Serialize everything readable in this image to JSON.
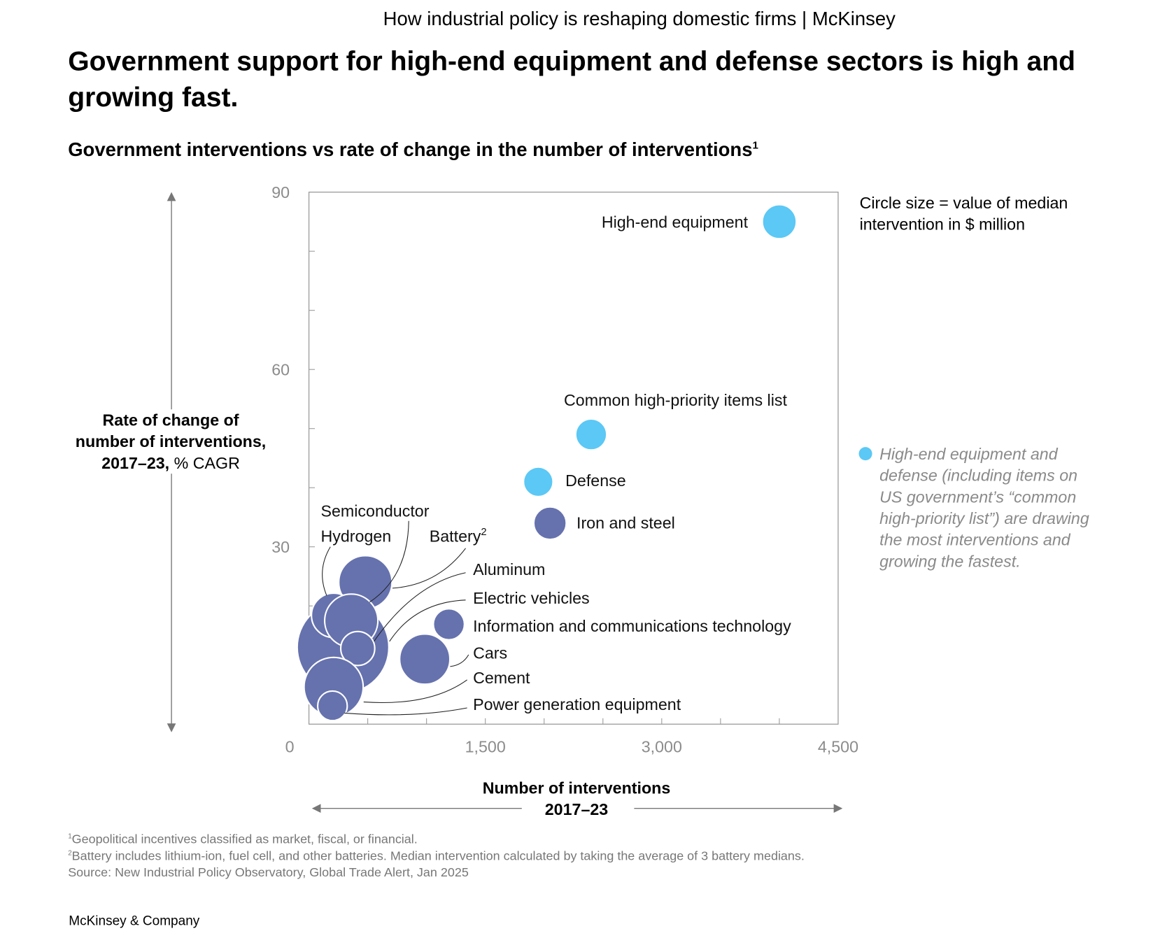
{
  "header": "How industrial policy is reshaping domestic firms | McKinsey",
  "title": "Government support for high-end equipment and defense sectors is high and growing fast.",
  "subtitle": "Government interventions vs rate of change in the number of interventions",
  "subtitle_sup": "1",
  "y_label": {
    "bold": "Rate of change of number of interventions, 2017–23,",
    "rest": " % CAGR"
  },
  "x_label": {
    "line1": "Number of interventions",
    "line2": "2017–23"
  },
  "legend_size": [
    "Circle size = value of median",
    "intervention in $ million"
  ],
  "highlight_note": "High-end equipment and defense (including items on US government’s “common high-priority list”) are drawing the most interventions and growing the fastest.",
  "colors": {
    "highlight": "#5bc8f5",
    "other": "#6672ae"
  },
  "footnotes": [
    {
      "sup": "1",
      "text": "Geopolitical incentives classified as market, fiscal, or financial."
    },
    {
      "sup": "2",
      "text": "Battery includes lithium-ion, fuel cell, and other batteries. Median intervention calculated by taking the average of 3 battery medians."
    },
    {
      "sup": "",
      "text": " Source: New Industrial Policy Observatory, Global Trade Alert, Jan 2025"
    }
  ],
  "brand": "McKinsey & Company",
  "chart_data": {
    "type": "scatter",
    "title": "Government interventions vs rate of change in the number of interventions",
    "xlabel": "Number of interventions 2017–23",
    "ylabel": "Rate of change of number of interventions, 2017–23, % CAGR",
    "xlim": [
      0,
      4500
    ],
    "ylim": [
      0,
      90
    ],
    "x_ticks": [
      "0",
      "1,500",
      "3,000",
      "4,500"
    ],
    "y_ticks": [
      "30",
      "60",
      "90"
    ],
    "size_note": "relative circle size",
    "points": [
      {
        "name": "Electric vehicles",
        "x": 290,
        "y": 13.0,
        "size": 62,
        "highlight": false
      },
      {
        "name": "Battery",
        "sup": "2",
        "x": 480,
        "y": 24,
        "size": 36,
        "highlight": false
      },
      {
        "name": "Hydrogen",
        "x": 210,
        "y": 18.4,
        "size": 30,
        "highlight": false
      },
      {
        "name": "Semiconductor",
        "x": 360,
        "y": 17.5,
        "size": 36,
        "highlight": false
      },
      {
        "name": "Aluminum",
        "x": 415,
        "y": 12.8,
        "size": 23,
        "highlight": false
      },
      {
        "name": "Cement",
        "x": 210,
        "y": 6.3,
        "size": 40,
        "highlight": false
      },
      {
        "name": "Power generation equipment",
        "x": 200,
        "y": 3.1,
        "size": 20,
        "highlight": false
      },
      {
        "name": "Cars",
        "x": 985,
        "y": 11,
        "size": 34,
        "highlight": false
      },
      {
        "name": "Information and communications technology",
        "x": 1190,
        "y": 16.9,
        "size": 21,
        "highlight": false
      },
      {
        "name": "Iron and steel",
        "x": 2050,
        "y": 34,
        "size": 22,
        "highlight": false
      },
      {
        "name": "Defense",
        "x": 1950,
        "y": 41,
        "size": 20,
        "highlight": true
      },
      {
        "name": "Common high-priority items list",
        "x": 2400,
        "y": 49,
        "size": 21,
        "highlight": true
      },
      {
        "name": "High-end equipment",
        "x": 4000,
        "y": 85,
        "size": 23,
        "highlight": true
      }
    ]
  }
}
